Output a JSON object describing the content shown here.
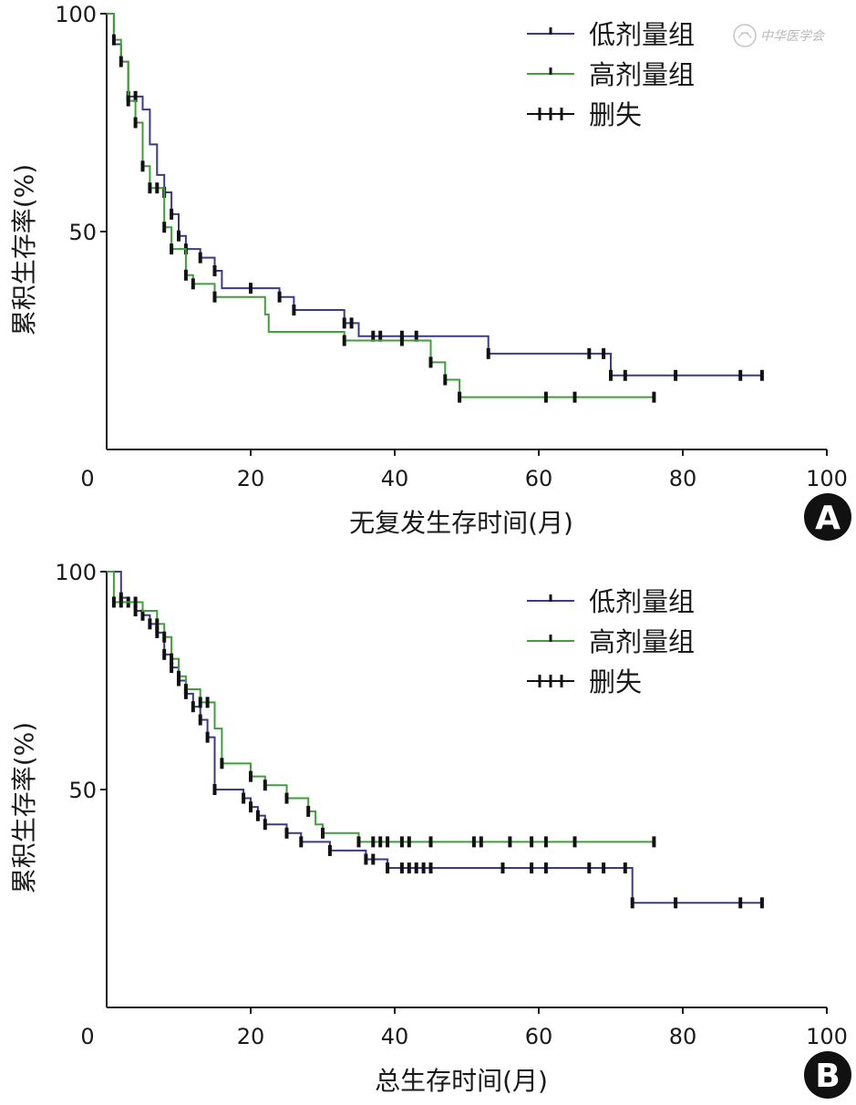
{
  "watermark": {
    "text": "中华医学会"
  },
  "chart_data": [
    {
      "type": "line",
      "subtype": "kaplan-meier step",
      "panel_label": "A",
      "title": "",
      "xlabel": "无复发生存时间(月)",
      "ylabel": "累积生存率(%)",
      "xlim": [
        0,
        100
      ],
      "ylim": [
        0,
        100
      ],
      "x_ticks": [
        "0",
        "20",
        "40",
        "60",
        "80",
        "100"
      ],
      "y_ticks": [
        "50",
        "100"
      ],
      "legend": {
        "placement": "top-right",
        "entries": [
          {
            "label": "低剂量组",
            "series": "low"
          },
          {
            "label": "高剂量组",
            "series": "high"
          },
          {
            "label": "删失",
            "series": "censor"
          }
        ]
      },
      "series": [
        {
          "name": "低剂量组",
          "key": "low",
          "color": "#3a3a8a",
          "steps": [
            [
              0,
              100
            ],
            [
              1,
              93
            ],
            [
              2,
              89
            ],
            [
              3,
              81
            ],
            [
              5,
              78
            ],
            [
              6,
              70
            ],
            [
              7,
              63
            ],
            [
              8,
              59
            ],
            [
              9,
              54
            ],
            [
              10,
              49
            ],
            [
              11,
              46
            ],
            [
              13,
              44
            ],
            [
              15,
              41
            ],
            [
              16,
              37
            ],
            [
              24,
              35
            ],
            [
              26,
              32
            ],
            [
              33,
              29
            ],
            [
              35,
              26
            ],
            [
              53,
              22
            ],
            [
              70,
              17
            ],
            [
              91,
              17
            ]
          ],
          "censored_x": [
            3,
            4,
            8,
            9,
            10,
            11,
            13,
            15,
            20,
            24,
            26,
            33,
            34,
            37,
            38,
            41,
            43,
            53,
            67,
            69,
            70,
            72,
            79,
            88,
            91
          ]
        },
        {
          "name": "高剂量组",
          "key": "high",
          "color": "#3fa03a",
          "steps": [
            [
              0,
              100
            ],
            [
              1,
              94
            ],
            [
              2,
              89
            ],
            [
              3,
              80
            ],
            [
              4,
              75
            ],
            [
              5,
              65
            ],
            [
              6,
              60
            ],
            [
              8,
              51
            ],
            [
              9,
              46
            ],
            [
              11,
              40
            ],
            [
              12,
              38
            ],
            [
              15,
              35
            ],
            [
              22,
              31
            ],
            [
              22.5,
              27
            ],
            [
              33,
              25
            ],
            [
              45,
              20
            ],
            [
              47,
              16
            ],
            [
              49,
              12
            ],
            [
              76,
              12
            ]
          ],
          "censored_x": [
            1,
            2,
            3,
            4,
            5,
            6,
            7,
            8,
            9,
            11,
            12,
            15,
            33,
            41,
            45,
            47,
            49,
            61,
            65,
            76
          ]
        }
      ]
    },
    {
      "type": "line",
      "subtype": "kaplan-meier step",
      "panel_label": "B",
      "title": "",
      "xlabel": "总生存时间(月)",
      "ylabel": "累积生存率(%)",
      "xlim": [
        0,
        100
      ],
      "ylim": [
        0,
        100
      ],
      "x_ticks": [
        "0",
        "20",
        "40",
        "60",
        "80",
        "100"
      ],
      "y_ticks": [
        "50",
        "100"
      ],
      "legend": {
        "placement": "top-right",
        "entries": [
          {
            "label": "低剂量组",
            "series": "low"
          },
          {
            "label": "高剂量组",
            "series": "high"
          },
          {
            "label": "删失",
            "series": "censor"
          }
        ]
      },
      "series": [
        {
          "name": "低剂量组",
          "key": "low",
          "color": "#3a3a8a",
          "steps": [
            [
              0,
              100
            ],
            [
              1,
              100
            ],
            [
              2,
              94
            ],
            [
              3,
              93
            ],
            [
              4,
              91
            ],
            [
              5,
              90
            ],
            [
              6,
              88
            ],
            [
              7,
              86
            ],
            [
              8,
              81
            ],
            [
              9,
              78
            ],
            [
              10,
              75
            ],
            [
              11,
              72
            ],
            [
              12,
              69
            ],
            [
              13,
              66
            ],
            [
              14,
              62
            ],
            [
              15,
              50
            ],
            [
              19,
              48
            ],
            [
              20,
              46
            ],
            [
              21,
              44
            ],
            [
              22,
              42
            ],
            [
              25,
              40
            ],
            [
              27,
              38
            ],
            [
              31,
              36
            ],
            [
              36,
              34
            ],
            [
              39,
              32
            ],
            [
              73,
              24
            ],
            [
              91,
              24
            ]
          ],
          "censored_x": [
            2,
            3,
            4,
            5,
            6,
            7,
            8,
            9,
            10,
            11,
            12,
            13,
            14,
            15,
            19,
            20,
            21,
            22,
            25,
            27,
            31,
            36,
            37,
            39,
            41,
            42,
            43,
            44,
            45,
            55,
            59,
            61,
            67,
            69,
            72,
            73,
            79,
            88,
            91
          ]
        },
        {
          "name": "高剂量组",
          "key": "high",
          "color": "#3fa03a",
          "steps": [
            [
              0,
              100
            ],
            [
              1,
              93
            ],
            [
              3,
              93
            ],
            [
              5,
              91
            ],
            [
              7,
              88
            ],
            [
              8,
              85
            ],
            [
              9,
              80
            ],
            [
              10,
              76
            ],
            [
              11,
              73
            ],
            [
              13,
              70
            ],
            [
              15,
              64
            ],
            [
              16,
              56
            ],
            [
              20,
              53
            ],
            [
              22,
              51
            ],
            [
              25,
              48
            ],
            [
              28,
              45
            ],
            [
              29,
              42
            ],
            [
              30,
              40
            ],
            [
              35,
              38
            ],
            [
              76,
              38
            ]
          ],
          "censored_x": [
            1,
            2,
            4,
            7,
            8,
            9,
            10,
            11,
            13,
            14,
            16,
            20,
            22,
            25,
            28,
            30,
            35,
            37,
            38,
            39,
            41,
            42,
            45,
            51,
            52,
            56,
            59,
            61,
            65,
            76
          ]
        }
      ]
    }
  ]
}
